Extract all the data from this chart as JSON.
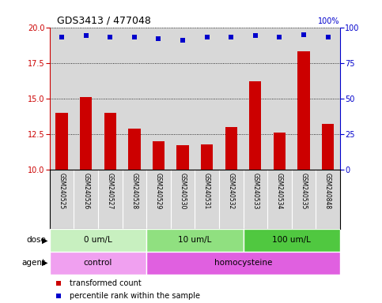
{
  "title": "GDS3413 / 477048",
  "samples": [
    "GSM240525",
    "GSM240526",
    "GSM240527",
    "GSM240528",
    "GSM240529",
    "GSM240530",
    "GSM240531",
    "GSM240532",
    "GSM240533",
    "GSM240534",
    "GSM240535",
    "GSM240848"
  ],
  "transformed_count": [
    14.0,
    15.1,
    14.0,
    12.9,
    12.0,
    11.7,
    11.8,
    13.0,
    16.2,
    12.6,
    18.3,
    13.2
  ],
  "percentile_rank": [
    93,
    94,
    93,
    93,
    92,
    91,
    93,
    93,
    94,
    93,
    95,
    93
  ],
  "ylim_left": [
    10,
    20
  ],
  "ylim_right": [
    0,
    100
  ],
  "yticks_left": [
    10,
    12.5,
    15,
    17.5,
    20
  ],
  "yticks_right": [
    0,
    25,
    50,
    75,
    100
  ],
  "dose_groups": [
    {
      "label": "0 um/L",
      "start": 0,
      "end": 4,
      "color": "#c8f0c0"
    },
    {
      "label": "10 um/L",
      "start": 4,
      "end": 8,
      "color": "#90e080"
    },
    {
      "label": "100 um/L",
      "start": 8,
      "end": 12,
      "color": "#50c840"
    }
  ],
  "agent_groups": [
    {
      "label": "control",
      "start": 0,
      "end": 4,
      "color": "#f0a0f0"
    },
    {
      "label": "homocysteine",
      "start": 4,
      "end": 12,
      "color": "#e060e0"
    }
  ],
  "bar_color": "#cc0000",
  "dot_color": "#0000cc",
  "left_axis_color": "#cc0000",
  "right_axis_color": "#0000cc",
  "background_color": "#ffffff",
  "plot_bg_color": "#d8d8d8",
  "legend_items": [
    {
      "color": "#cc0000",
      "label": "transformed count"
    },
    {
      "color": "#0000cc",
      "label": "percentile rank within the sample"
    }
  ]
}
